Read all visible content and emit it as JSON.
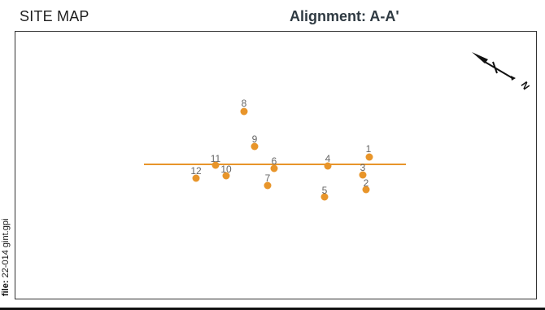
{
  "header": {
    "title": "SITE MAP",
    "alignment": "Alignment: A-A'"
  },
  "footer": {
    "file_prefix": "file:",
    "file_name": "22-014 gint.gpi"
  },
  "north_arrow": {
    "label": "N",
    "icon": "north-arrow-icon"
  },
  "colors": {
    "marker": "#e8952a",
    "line": "#e8952a",
    "frame": "#333333",
    "label": "#666666"
  },
  "points": [
    {
      "id": "1",
      "label": "1"
    },
    {
      "id": "2",
      "label": "2"
    },
    {
      "id": "3",
      "label": "3"
    },
    {
      "id": "4",
      "label": "4"
    },
    {
      "id": "5",
      "label": "5"
    },
    {
      "id": "6",
      "label": "6"
    },
    {
      "id": "7",
      "label": "7"
    },
    {
      "id": "8",
      "label": "8"
    },
    {
      "id": "9",
      "label": "9"
    },
    {
      "id": "10",
      "label": "10"
    },
    {
      "id": "11",
      "label": "11"
    },
    {
      "id": "12",
      "label": "12"
    }
  ]
}
